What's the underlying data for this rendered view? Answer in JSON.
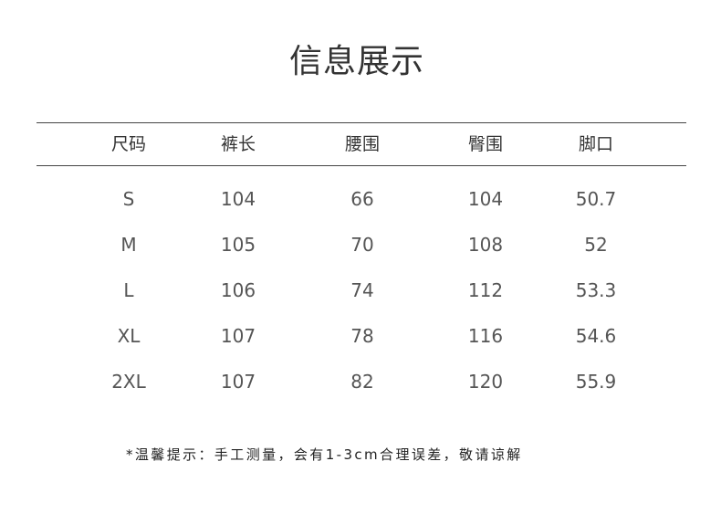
{
  "title": "信息展示",
  "headers": [
    "尺码",
    "裤长",
    "腰围",
    "臀围",
    "脚口"
  ],
  "rows": [
    [
      "S",
      "104",
      "66",
      "104",
      "50.7"
    ],
    [
      "M",
      "105",
      "70",
      "108",
      "52"
    ],
    [
      "L",
      "106",
      "74",
      "112",
      "53.3"
    ],
    [
      "XL",
      "107",
      "78",
      "116",
      "54.6"
    ],
    [
      "2XL",
      "107",
      "82",
      "120",
      "55.9"
    ]
  ],
  "note": "*温馨提示：手工测量，会有1-3cm合理误差，敬请谅解"
}
